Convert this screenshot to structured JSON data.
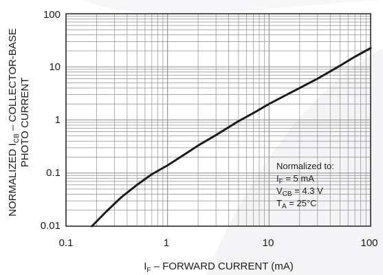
{
  "chart_data": {
    "type": "line",
    "x_scale": "log",
    "y_scale": "log",
    "xlim": [
      0.1,
      100
    ],
    "ylim": [
      0.01,
      100
    ],
    "grid": true,
    "x_ticks": [
      "0.1",
      "1",
      "10",
      "100"
    ],
    "y_ticks": [
      "100",
      "10",
      "1",
      "0.1",
      "0.01"
    ],
    "xlabel": {
      "main": "I",
      "sub": "F",
      "rest": " – FORWARD CURRENT (mA)"
    },
    "ylabel": {
      "line1_pre": "NORMALIZED I",
      "line1_sub": "CB",
      "line1_post": " – COLLECTOR-BASE",
      "line2": "PHOTO CURRENT"
    },
    "series": [
      {
        "x": [
          0.18,
          0.25,
          0.35,
          0.5,
          0.7,
          1,
          1.5,
          2,
          3,
          5,
          7,
          10,
          15,
          20,
          30,
          50,
          70,
          100
        ],
        "y": [
          0.01,
          0.019,
          0.035,
          0.06,
          0.095,
          0.14,
          0.23,
          0.33,
          0.52,
          0.95,
          1.35,
          2.0,
          3.0,
          4.0,
          6.0,
          10.5,
          15.5,
          22.5
        ]
      }
    ],
    "annotation": {
      "title": "Normalized to:",
      "line1": {
        "main": "I",
        "sub": "F",
        "rest": " = 5 mA"
      },
      "line2": {
        "main": "V",
        "sub": "CB",
        "rest": " = 4.3 V"
      },
      "line3": {
        "main": "T",
        "sub": "A",
        "rest": " = 25°C"
      }
    },
    "colors": {
      "curve": "#1a1a1a",
      "grid": "#8c8c8c",
      "frame": "#1a1a1a",
      "swoosh": "#f3f3f6"
    }
  }
}
